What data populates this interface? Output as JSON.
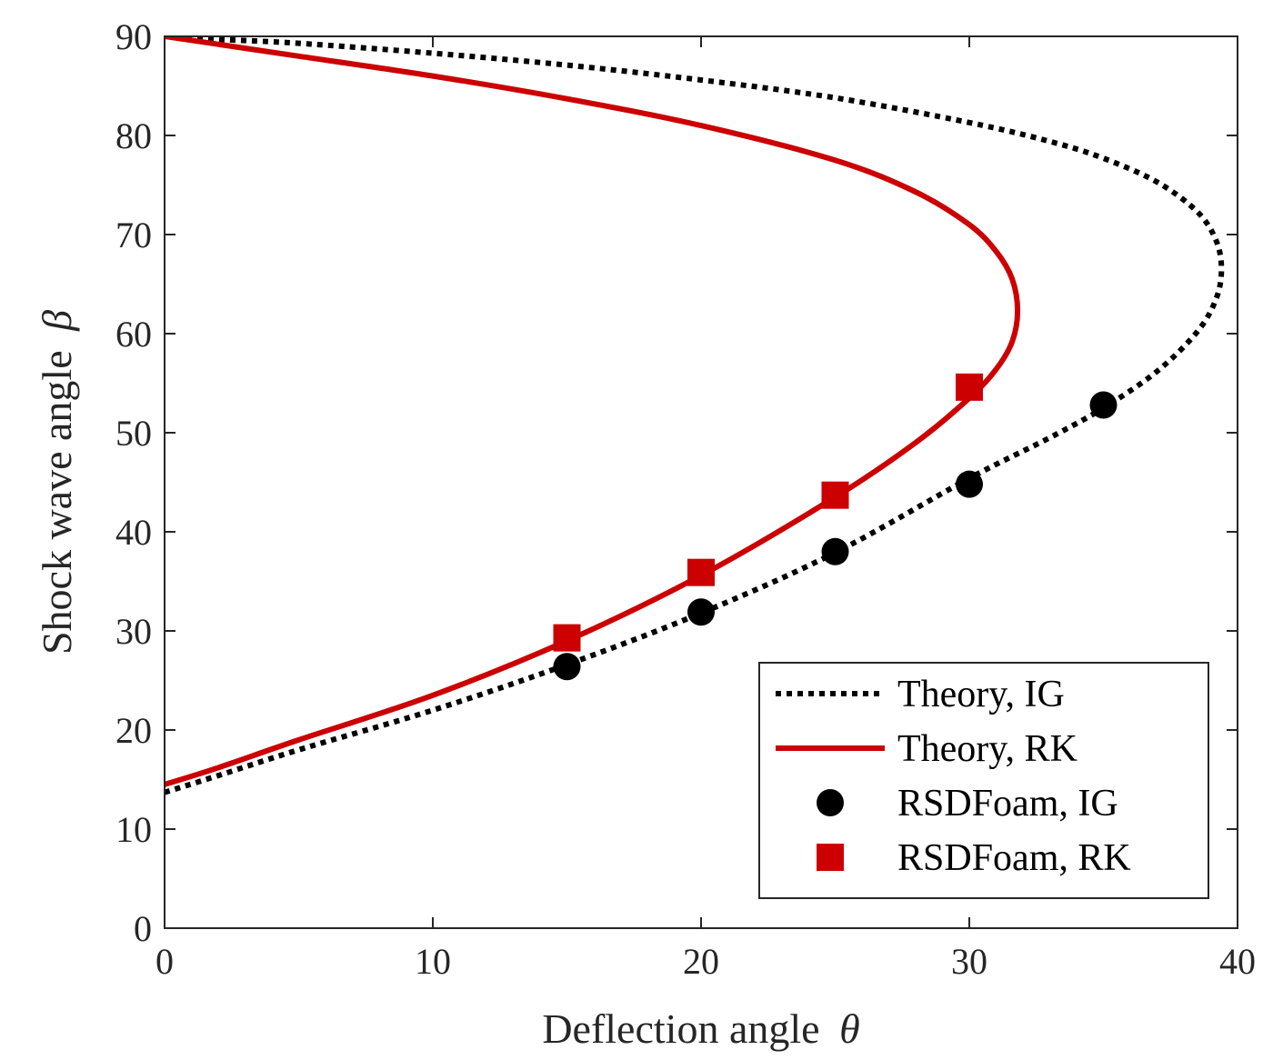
{
  "chart_data": {
    "type": "line",
    "xlabel": "Deflection angle",
    "xlabel_symbol": "θ",
    "ylabel": "Shock wave angle",
    "ylabel_symbol": "β",
    "xlim": [
      0,
      40
    ],
    "ylim": [
      0,
      90
    ],
    "xticks": [
      0,
      10,
      20,
      30,
      40
    ],
    "yticks": [
      0,
      10,
      20,
      30,
      40,
      50,
      60,
      70,
      80,
      90
    ],
    "grid": false,
    "legend_position": "bottom-right",
    "series": [
      {
        "name": "Theory, IG",
        "kind": "line",
        "style": "dotted",
        "color": "#000000",
        "x": [
          0,
          2,
          5,
          10,
          15,
          20,
          25,
          30,
          33,
          35,
          37,
          38.5,
          39.2,
          39.4,
          39.2,
          38.5,
          37,
          35,
          33,
          30,
          25,
          20,
          15,
          10,
          5,
          2,
          0
        ],
        "y": [
          13.7,
          15.4,
          18.0,
          22.0,
          26.6,
          31.8,
          37.9,
          45.4,
          49.5,
          52.5,
          56.2,
          60.2,
          63.5,
          66.5,
          69.4,
          72.3,
          75.3,
          77.7,
          79.4,
          81.3,
          83.8,
          85.6,
          87.1,
          88.3,
          89.3,
          89.7,
          90
        ]
      },
      {
        "name": "Theory, RK",
        "kind": "line",
        "style": "solid",
        "color": "#cc0000",
        "x": [
          0,
          2,
          5,
          10,
          15,
          20,
          25,
          28,
          30,
          31,
          31.6,
          31.8,
          31.6,
          31,
          30,
          28,
          25,
          20,
          15,
          10,
          5,
          2,
          0
        ],
        "y": [
          14.5,
          16.2,
          19.0,
          23.5,
          29.0,
          35.6,
          43.5,
          49.0,
          53.5,
          56.4,
          59.2,
          62.3,
          65.5,
          68.3,
          71.0,
          74.3,
          77.5,
          81.0,
          83.7,
          86.0,
          88.0,
          89.2,
          90
        ]
      },
      {
        "name": "RSDFoam, IG",
        "kind": "scatter",
        "marker": "circle",
        "color": "#000000",
        "x": [
          15,
          20,
          25,
          30,
          35
        ],
        "y": [
          26.4,
          31.9,
          38.0,
          44.8,
          52.8
        ]
      },
      {
        "name": "RSDFoam, RK",
        "kind": "scatter",
        "marker": "square",
        "color": "#cc0000",
        "x": [
          15,
          20,
          25,
          30
        ],
        "y": [
          29.3,
          35.9,
          43.7,
          54.6
        ]
      }
    ]
  }
}
